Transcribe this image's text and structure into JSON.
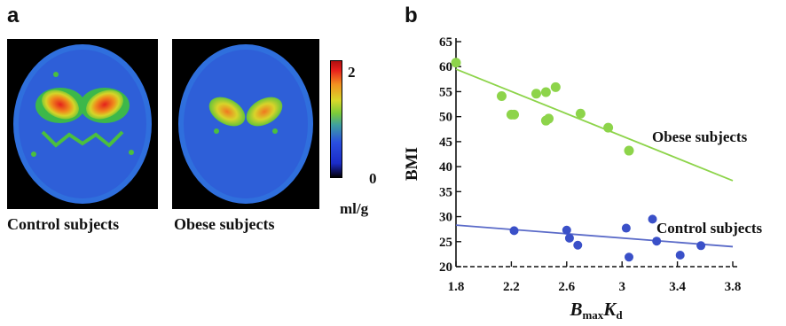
{
  "panels": {
    "a_letter": "a",
    "b_letter": "b"
  },
  "scans": {
    "control_caption": "Control subjects",
    "obese_caption": "Obese subjects",
    "colorbar_max": "2",
    "colorbar_min": "0",
    "colorbar_unit": "ml/g"
  },
  "colors": {
    "obese": "#8dd44a",
    "control": "#3a50c8",
    "obese_line": "#8dd44a",
    "control_line": "#5a6ac8"
  },
  "chart_data": {
    "type": "scatter",
    "ylabel": "BMI",
    "xlabel_main": "B",
    "xlabel_sub1": "max",
    "xlabel_mid": "K",
    "xlabel_sub2": "d",
    "xlim": [
      1.8,
      3.8
    ],
    "ylim": [
      20,
      65
    ],
    "xticks": [
      "1.8",
      "2.2",
      "2.6",
      "3",
      "3.4",
      "3.8"
    ],
    "yticks": [
      "20",
      "25",
      "30",
      "35",
      "40",
      "45",
      "50",
      "55",
      "60",
      "65"
    ],
    "series": [
      {
        "name": "Obese subjects",
        "points": [
          [
            1.8,
            60.8
          ],
          [
            2.13,
            54.1
          ],
          [
            2.2,
            50.4
          ],
          [
            2.22,
            50.4
          ],
          [
            2.38,
            54.6
          ],
          [
            2.45,
            54.9
          ],
          [
            2.45,
            49.2
          ],
          [
            2.47,
            49.6
          ],
          [
            2.52,
            55.9
          ],
          [
            2.7,
            50.6
          ],
          [
            2.9,
            47.8
          ],
          [
            3.05,
            43.2
          ]
        ],
        "fit": [
          [
            1.8,
            59.5
          ],
          [
            3.8,
            37.2
          ]
        ]
      },
      {
        "name": "Control subjects",
        "points": [
          [
            2.22,
            27.2
          ],
          [
            2.6,
            27.3
          ],
          [
            2.62,
            25.7
          ],
          [
            2.68,
            24.3
          ],
          [
            3.03,
            27.7
          ],
          [
            3.05,
            21.9
          ],
          [
            3.22,
            29.5
          ],
          [
            3.25,
            25.1
          ],
          [
            3.42,
            22.3
          ],
          [
            3.57,
            24.2
          ]
        ],
        "fit": [
          [
            1.8,
            28.3
          ],
          [
            3.8,
            24.0
          ]
        ]
      }
    ]
  }
}
